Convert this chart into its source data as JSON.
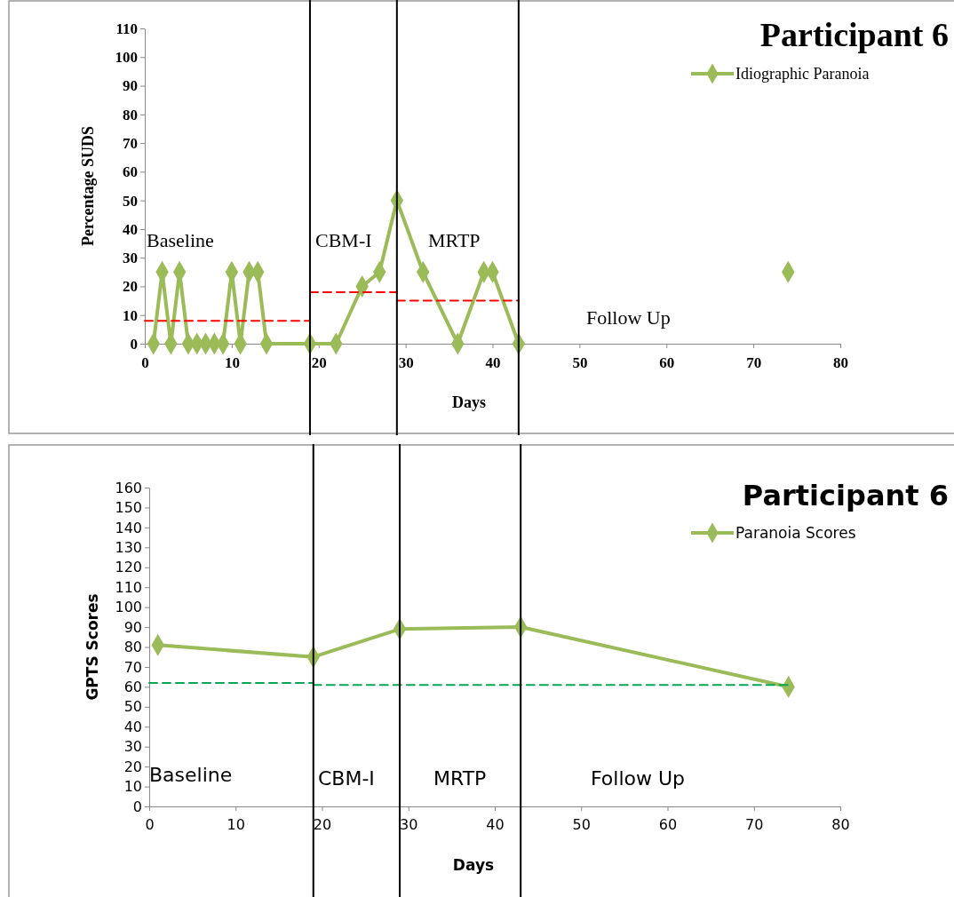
{
  "chart_data": [
    {
      "type": "line",
      "title": "Participant 6",
      "xlabel": "Days",
      "ylabel": "Percentage SUDS",
      "xlim": [
        0,
        80
      ],
      "xticks": [
        0,
        10,
        20,
        30,
        40,
        50,
        60,
        70,
        80
      ],
      "ylim": [
        0,
        110
      ],
      "yticks": [
        0,
        10,
        20,
        30,
        40,
        50,
        60,
        70,
        80,
        90,
        100,
        110
      ],
      "legend": "top right",
      "grid": false,
      "series": [
        {
          "name": "Idiographic Paranoia",
          "color": "#9bbb59",
          "marker": "diamond",
          "line_style": "solid",
          "x": [
            1,
            2,
            3,
            4,
            5,
            6,
            7,
            8,
            9,
            10,
            11,
            12,
            13,
            14,
            19,
            22,
            25,
            27,
            29,
            32,
            36,
            39,
            40,
            43,
            58,
            74
          ],
          "values": [
            0,
            25,
            0,
            25,
            0,
            0,
            0,
            0,
            0,
            25,
            0,
            25,
            25,
            0,
            0,
            0,
            20,
            25,
            50,
            25,
            0,
            25,
            25,
            0,
            null,
            25
          ]
        },
        {
          "color": "#ff0000",
          "marker": "none",
          "line_style": "dashed",
          "x": [
            0,
            19
          ],
          "values": [
            8,
            8
          ]
        },
        {
          "color": "#ff0000",
          "marker": "none",
          "line_style": "dashed",
          "x": [
            19,
            29
          ],
          "values": [
            18,
            18
          ]
        },
        {
          "color": "#ff0000",
          "marker": "none",
          "line_style": "dashed",
          "x": [
            29,
            43
          ],
          "values": [
            15,
            15
          ]
        }
      ],
      "ref_lines": [
        {
          "axis": "x",
          "value": 19,
          "color": "#000000"
        },
        {
          "axis": "x",
          "value": 29,
          "color": "#000000"
        },
        {
          "axis": "x",
          "value": 43,
          "color": "#000000"
        }
      ],
      "annotations": [
        "Baseline",
        "CBM-I",
        "MRTP",
        "Follow Up"
      ]
    },
    {
      "type": "line",
      "title": "Participant 6",
      "xlabel": "Days",
      "ylabel": "GPTS Scores",
      "xlim": [
        0,
        80
      ],
      "xticks": [
        0,
        10,
        20,
        30,
        40,
        50,
        60,
        70,
        80
      ],
      "ylim": [
        0,
        160
      ],
      "yticks": [
        0,
        10,
        20,
        30,
        40,
        50,
        60,
        70,
        80,
        90,
        100,
        110,
        120,
        130,
        140,
        150,
        160
      ],
      "legend": "top right",
      "grid": false,
      "series": [
        {
          "name": "Paranoia Scores",
          "color": "#9bbb59",
          "marker": "diamond",
          "line_style": "solid",
          "x": [
            1,
            19,
            29,
            43,
            74
          ],
          "values": [
            81,
            75,
            89,
            90,
            60
          ]
        },
        {
          "color": "#00a651",
          "marker": "none",
          "line_style": "dashed",
          "x": [
            0,
            19
          ],
          "values": [
            62,
            62
          ]
        },
        {
          "color": "#00a651",
          "marker": "none",
          "line_style": "dashed",
          "x": [
            19,
            74
          ],
          "values": [
            61,
            61
          ]
        }
      ],
      "ref_lines": [
        {
          "axis": "x",
          "value": 19,
          "color": "#000000"
        },
        {
          "axis": "x",
          "value": 29,
          "color": "#000000"
        },
        {
          "axis": "x",
          "value": 43,
          "color": "#000000"
        }
      ],
      "annotations": [
        "Baseline",
        "CBM-I",
        "MRTP",
        "Follow Up"
      ]
    }
  ]
}
